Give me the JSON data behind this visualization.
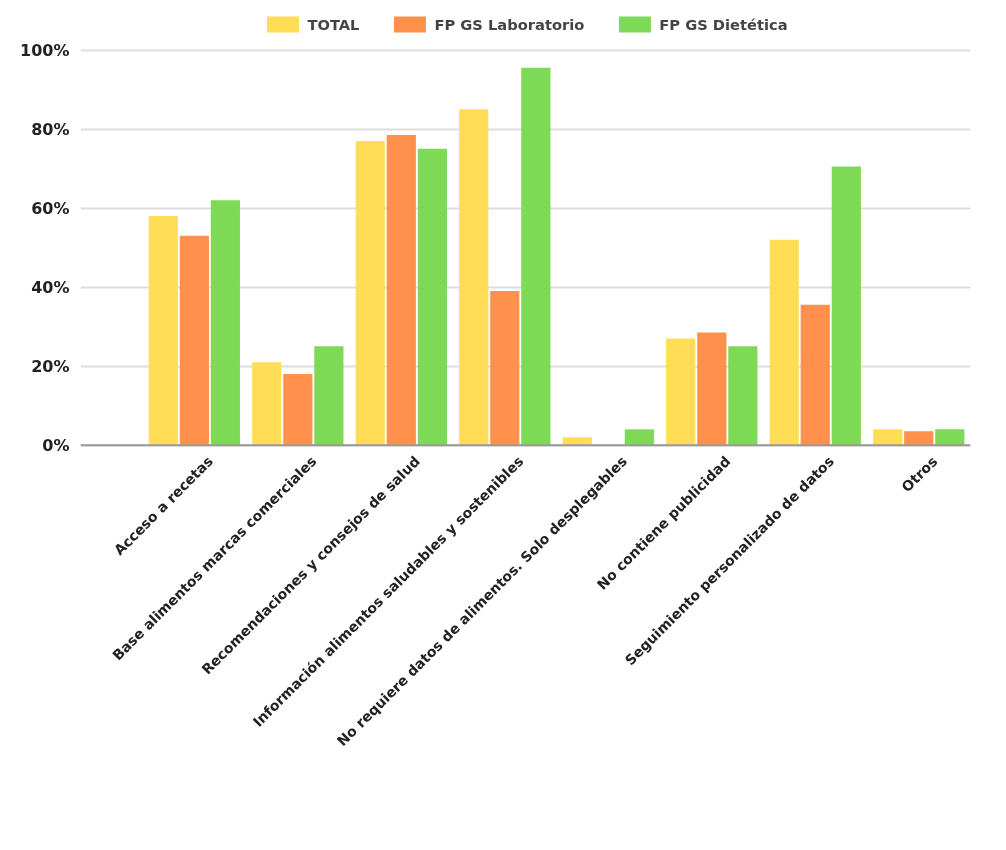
{
  "chart_data": {
    "type": "bar",
    "categories": [
      "Acceso a recetas",
      "Base alimentos marcas comerciales",
      "Recomendaciones y consejos de salud",
      "Información alimentos saludables y sostenibles",
      "No requiere datos de alimentos. Solo desplegables",
      "No contiene publicidad",
      "Seguimiento personalizado de datos",
      "Otros"
    ],
    "series": [
      {
        "name": "TOTAL",
        "color": "#ffdd57",
        "values": [
          58,
          21,
          77,
          85,
          2,
          27,
          52,
          4
        ]
      },
      {
        "name": "FP GS Laboratorio",
        "color": "#ff914d",
        "values": [
          53,
          18,
          78.5,
          39,
          0,
          28.5,
          35.5,
          3.5
        ]
      },
      {
        "name": "FP GS Dietética",
        "color": "#7ed957",
        "values": [
          62,
          25,
          75,
          95.5,
          4,
          25,
          70.5,
          4
        ]
      }
    ],
    "ylim": [
      0,
      100
    ],
    "yticks": [
      {
        "value": 0,
        "label": "0%"
      },
      {
        "value": 20,
        "label": "20%"
      },
      {
        "value": 40,
        "label": "40%"
      },
      {
        "value": 60,
        "label": "60%"
      },
      {
        "value": 80,
        "label": "80%"
      },
      {
        "value": 100,
        "label": "100%"
      }
    ],
    "grid": "y",
    "legend": "top"
  }
}
